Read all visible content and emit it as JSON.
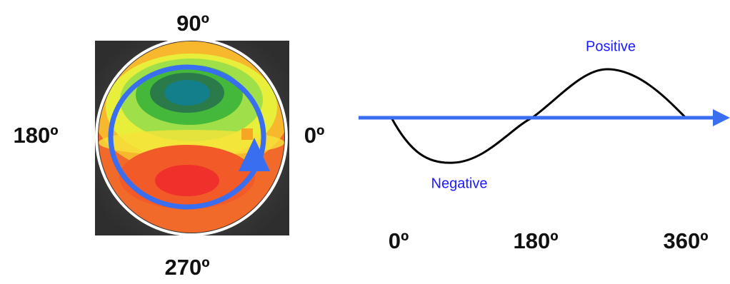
{
  "polar_labels": {
    "top": "90º",
    "left": "180º",
    "right": "0º",
    "bottom": "270º"
  },
  "wave": {
    "positive": "Positive",
    "negative": "Negative",
    "axis_labels": [
      "0º",
      "180º",
      "360º"
    ]
  }
}
